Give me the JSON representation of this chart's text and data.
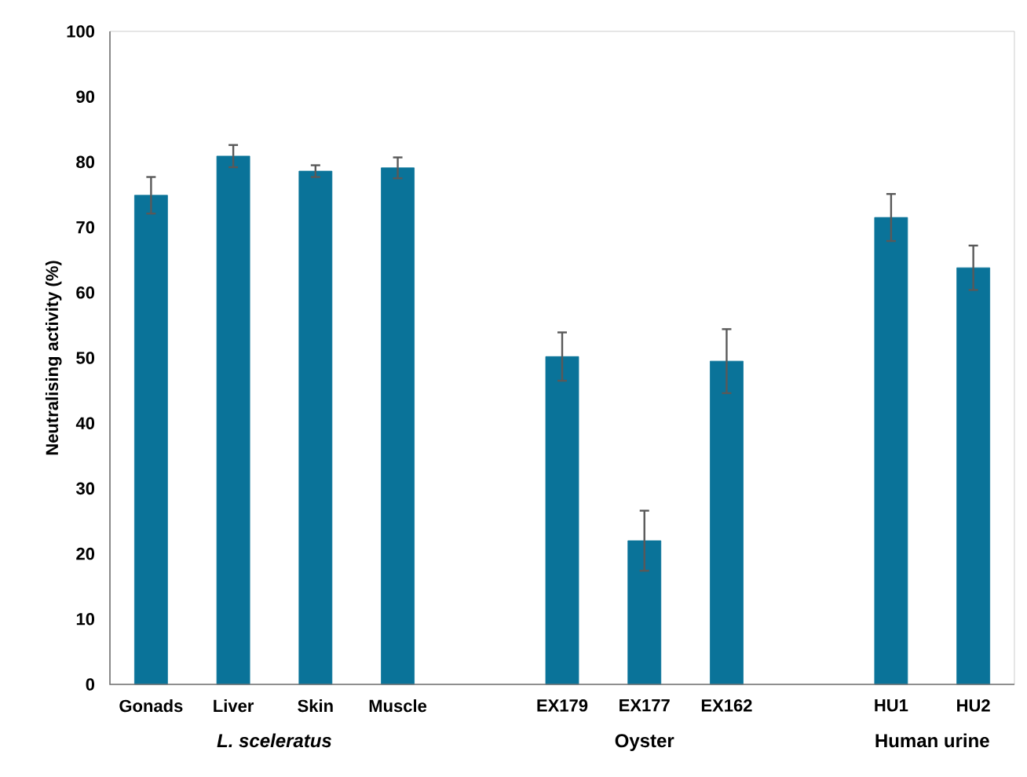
{
  "chart_data": {
    "type": "bar",
    "ylabel": "Neutralising activity (%)",
    "categories": [
      "Gonads",
      "Liver",
      "Skin",
      "Muscle",
      null,
      "EX179",
      "EX177",
      "EX162",
      null,
      "HU1",
      "HU2"
    ],
    "values": [
      74.9,
      80.9,
      78.6,
      79.1,
      null,
      50.2,
      22.0,
      49.5,
      null,
      71.5,
      63.8
    ],
    "errors": [
      2.8,
      1.7,
      0.9,
      1.6,
      null,
      3.7,
      4.6,
      4.9,
      null,
      3.6,
      3.4
    ],
    "color": "#0a7399",
    "ylim": [
      0,
      100
    ],
    "yticks": [
      0,
      10,
      20,
      30,
      40,
      50,
      60,
      70,
      80,
      90,
      100
    ],
    "annotations": [
      "L. sceleratus",
      "Oyster",
      "Human urine"
    ]
  }
}
